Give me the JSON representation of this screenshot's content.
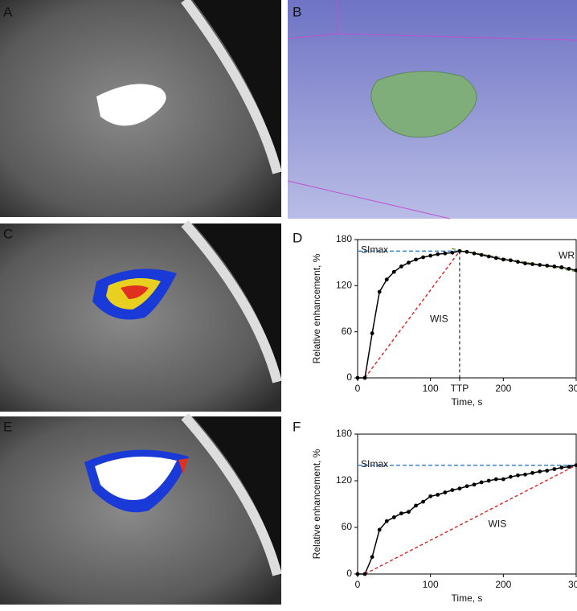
{
  "panel_labels": [
    "A",
    "B",
    "C",
    "D",
    "E",
    "F"
  ],
  "chart_data": [
    {
      "type": "line",
      "title": "D",
      "xlabel": "Time, s",
      "ylabel": "Relative enhancement, %",
      "x": [
        0,
        10,
        20,
        30,
        40,
        50,
        60,
        70,
        80,
        90,
        100,
        110,
        120,
        130,
        140,
        150,
        160,
        170,
        180,
        190,
        200,
        210,
        220,
        230,
        240,
        250,
        260,
        270,
        280,
        290,
        300
      ],
      "series": [
        {
          "name": "Relative enhancement",
          "color": "#000000",
          "values": [
            0,
            0,
            58,
            112,
            128,
            138,
            145,
            150,
            154,
            157,
            159,
            161,
            162,
            163,
            165,
            164,
            162,
            160,
            158,
            156,
            154,
            153,
            151,
            149,
            148,
            147,
            146,
            145,
            144,
            142,
            140
          ]
        }
      ],
      "xlim": [
        0,
        300
      ],
      "xticks": [
        0,
        100,
        {
          "value": 140,
          "label": "TTP"
        },
        200,
        300
      ],
      "ylim": [
        0,
        180
      ],
      "yticks": [
        0,
        60,
        120,
        180
      ],
      "peak_label": "SImax",
      "wash_in_label": "WIS",
      "wash_out_label": "WR"
    },
    {
      "type": "line",
      "title": "F",
      "xlabel": "Time, s",
      "ylabel": "Relative enhancement, %",
      "x": [
        0,
        10,
        20,
        30,
        40,
        50,
        60,
        70,
        80,
        90,
        100,
        110,
        120,
        130,
        140,
        150,
        160,
        170,
        180,
        190,
        200,
        210,
        220,
        230,
        240,
        250,
        260,
        270,
        280,
        290,
        300
      ],
      "series": [
        {
          "name": "Relative enhancement",
          "color": "#000000",
          "values": [
            0,
            0,
            22,
            57,
            68,
            73,
            78,
            80,
            88,
            93,
            100,
            102,
            105,
            108,
            110,
            113,
            115,
            118,
            120,
            122,
            122,
            125,
            127,
            128,
            130,
            132,
            133,
            135,
            137,
            138,
            140
          ]
        }
      ],
      "xlim": [
        0,
        300
      ],
      "xticks": [
        0,
        100,
        200,
        300
      ],
      "ylim": [
        0,
        180
      ],
      "yticks": [
        0,
        60,
        120,
        180
      ],
      "peak_label": "SImax",
      "wash_in_label": "WIS"
    }
  ]
}
